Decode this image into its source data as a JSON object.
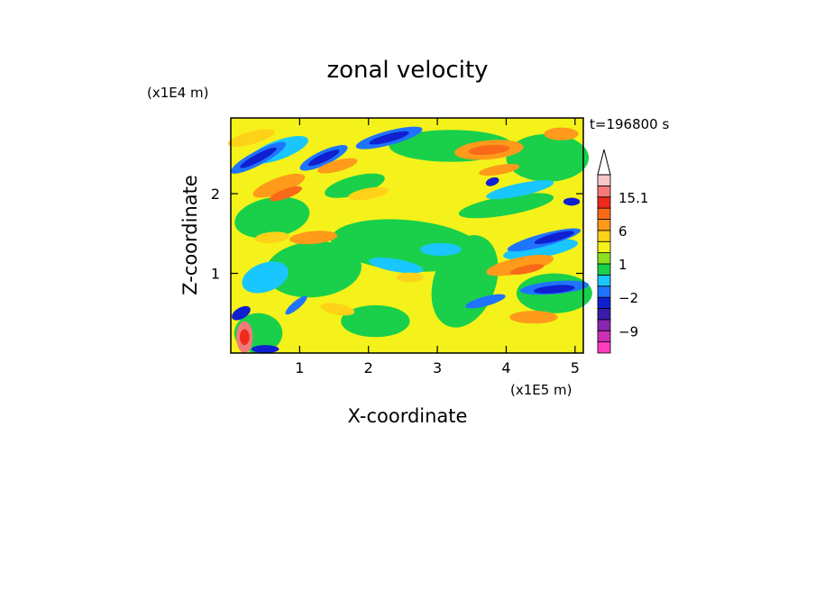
{
  "chart_data": {
    "type": "heatmap",
    "title": "zonal velocity",
    "xlabel": "X-coordinate",
    "ylabel": "Z-coordinate",
    "x_unit_label": "(x1E5 m)",
    "y_unit_label": "(x1E4 m)",
    "time_label": "t=196800 s",
    "xlim": [
      0,
      5.12
    ],
    "ylim": [
      0,
      2.95
    ],
    "x_ticks": [
      1,
      2,
      3,
      4,
      5
    ],
    "x_tick_labels": [
      "1",
      "2",
      "3",
      "4",
      "5"
    ],
    "y_ticks": [
      1,
      2
    ],
    "y_tick_labels": [
      "1",
      "2"
    ],
    "colorbar": {
      "levels": [
        -15,
        -12,
        -9,
        -6,
        -3,
        -2,
        -1,
        0,
        1,
        2,
        3,
        6,
        9,
        12,
        15.1
      ],
      "labeled_ticks": [
        {
          "value": 15.1,
          "label": "15.1"
        },
        {
          "value": 6,
          "label": "6"
        },
        {
          "value": 1,
          "label": "1"
        },
        {
          "value": -2,
          "label": "−2"
        },
        {
          "value": -9,
          "label": "−9"
        }
      ],
      "colors": [
        "#ff3ebd",
        "#cc2eb4",
        "#8a26b0",
        "#3a1aa8",
        "#1020d0",
        "#1e74ff",
        "#19c6ff",
        "#1ad04a",
        "#8ae020",
        "#f4f21a",
        "#ffd21a",
        "#ff9a1a",
        "#f86a18",
        "#ee2a1a",
        "#f47a7a",
        "#f6c8c8"
      ],
      "extend_max": true
    }
  }
}
